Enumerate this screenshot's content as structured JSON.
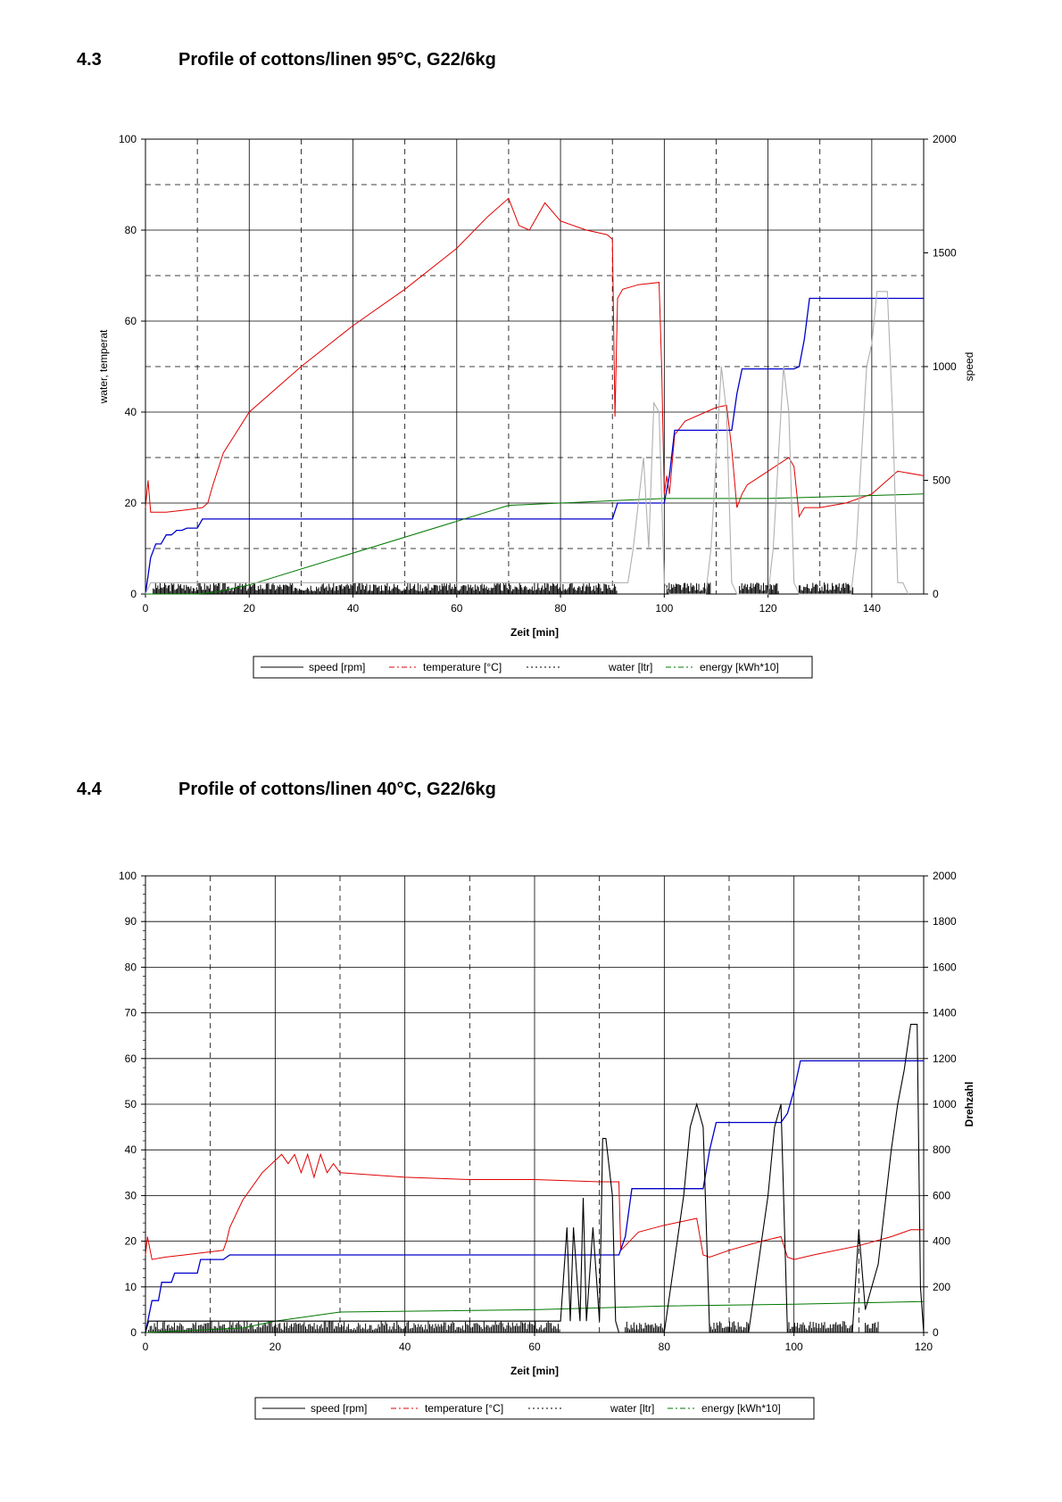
{
  "sections": [
    {
      "number": "4.3",
      "title": "Profile of cottons/linen 95°C, G22/6kg"
    },
    {
      "number": "4.4",
      "title": "Profile of cottons/linen 40°C, G22/6kg"
    }
  ],
  "chart_data": [
    {
      "type": "line",
      "title": "",
      "xlabel": "Zeit [min]",
      "ylabel": "water, temperat",
      "y2label": "speed",
      "xlim": [
        0,
        150
      ],
      "ylim": [
        0,
        100
      ],
      "y2lim": [
        0,
        2000
      ],
      "xticks": [
        0,
        20,
        40,
        60,
        80,
        100,
        120,
        140
      ],
      "yticks": [
        0,
        20,
        40,
        60,
        80,
        100
      ],
      "y2ticks": [
        0,
        500,
        1000,
        1500,
        2000
      ],
      "grid": true,
      "legend_position": "bottom",
      "legend": [
        "speed [rpm]",
        "temperature [°C]",
        "water [ltr]",
        "energy [kWh*10]"
      ],
      "colors": {
        "speed": "#000000",
        "speed_spin": "#b0b0b0",
        "temperature": "#e00000",
        "water": "#0000cc",
        "energy": "#007700"
      },
      "series": [
        {
          "name": "temperature [°C]",
          "axis": "left",
          "x": [
            0,
            0.5,
            1,
            4,
            8,
            11,
            12,
            13,
            15,
            20,
            30,
            40,
            50,
            60,
            66,
            70,
            72,
            74,
            77,
            80,
            85,
            89,
            90,
            90.5,
            91,
            92,
            95,
            99,
            99.5,
            100,
            100.5,
            101,
            102,
            104,
            108,
            110,
            112,
            113,
            114,
            115,
            116,
            120,
            124,
            125,
            126,
            127,
            130,
            135,
            140,
            145,
            150
          ],
          "y": [
            19,
            25,
            18,
            18,
            18.5,
            19,
            20,
            24,
            31,
            40,
            50,
            59,
            67,
            76,
            83,
            87,
            81,
            80,
            86,
            82,
            80,
            79,
            78,
            39,
            65,
            67,
            68,
            68.5,
            50,
            22,
            26,
            22,
            35,
            38,
            40,
            41,
            41.5,
            32,
            19,
            22,
            24,
            27,
            30,
            28,
            17,
            19,
            19,
            20,
            22,
            27,
            26
          ]
        },
        {
          "name": "water [ltr]",
          "axis": "left",
          "x": [
            0,
            1,
            2,
            3,
            4,
            5,
            6,
            7,
            8,
            10,
            11,
            12,
            90,
            91,
            99,
            100,
            101,
            102,
            112,
            113,
            114,
            115,
            125,
            126,
            127,
            128,
            150
          ],
          "y": [
            0,
            8,
            11,
            11,
            13,
            13,
            14,
            14,
            14.5,
            14.5,
            16.5,
            16.5,
            16.5,
            20,
            20,
            20,
            26,
            36,
            36,
            36,
            44,
            49.5,
            49.5,
            50,
            56,
            65,
            65
          ]
        },
        {
          "name": "energy [kWh*10]",
          "axis": "left",
          "x": [
            0,
            10,
            14,
            20,
            70,
            90,
            100,
            120,
            150
          ],
          "y": [
            0,
            0,
            0.5,
            2,
            19.5,
            20.5,
            21,
            21,
            22
          ]
        },
        {
          "name": "speed [rpm]",
          "axis": "right",
          "x": [
            0,
            1,
            93,
            94,
            96,
            97,
            98,
            99,
            100,
            101,
            108,
            109,
            110,
            111,
            112,
            113,
            114,
            120,
            121,
            122,
            123,
            124,
            125,
            126,
            136,
            137,
            138,
            139,
            140,
            141,
            142,
            143,
            144,
            145,
            146,
            147
          ],
          "y": [
            0,
            50,
            50,
            200,
            600,
            200,
            840,
            800,
            50,
            0,
            0,
            200,
            600,
            1000,
            800,
            50,
            0,
            0,
            200,
            600,
            1000,
            800,
            50,
            0,
            0,
            200,
            600,
            1000,
            1100,
            1330,
            1330,
            1330,
            800,
            50,
            50,
            0
          ]
        }
      ]
    },
    {
      "type": "line",
      "title": "",
      "xlabel": "Zeit [min]",
      "ylabel": "",
      "y2label": "Drehzahl",
      "xlim": [
        0,
        120
      ],
      "ylim": [
        0,
        100
      ],
      "y2lim": [
        0,
        2000
      ],
      "xticks": [
        0,
        20,
        40,
        60,
        80,
        100,
        120
      ],
      "yticks": [
        0,
        10,
        20,
        30,
        40,
        50,
        60,
        70,
        80,
        90,
        100
      ],
      "y2ticks": [
        0,
        200,
        400,
        600,
        800,
        1000,
        1200,
        1400,
        1600,
        1800,
        2000
      ],
      "grid": true,
      "legend_position": "bottom",
      "legend": [
        "speed [rpm]",
        "temperature [°C]",
        "water [ltr]",
        "energy [kWh*10]"
      ],
      "colors": {
        "speed": "#000000",
        "temperature": "#e00000",
        "water": "#0000cc",
        "energy": "#007700"
      },
      "series": [
        {
          "name": "temperature [°C]",
          "axis": "left",
          "x": [
            0,
            0.3,
            1,
            3,
            6,
            9,
            12,
            12.5,
            13,
            15,
            18,
            21,
            22,
            23,
            24,
            25,
            26,
            27,
            28,
            29,
            30,
            40,
            50,
            60,
            70,
            73,
            73.3,
            74,
            76,
            80,
            85,
            86,
            87,
            90,
            95,
            98,
            99,
            100,
            103,
            110,
            115,
            118,
            120
          ],
          "y": [
            17,
            21,
            16,
            16.5,
            17,
            17.5,
            18,
            20,
            23,
            29,
            35,
            39,
            37,
            39,
            35,
            39,
            34,
            39,
            35,
            37,
            35,
            34,
            33.5,
            33.5,
            33,
            33,
            18,
            19,
            22,
            23.5,
            25,
            17,
            16.5,
            18,
            20,
            21,
            16.5,
            16,
            17,
            19,
            21,
            22.5,
            22.5
          ]
        },
        {
          "name": "water [ltr]",
          "axis": "left",
          "x": [
            0,
            1,
            2,
            2.5,
            4,
            4.5,
            8,
            8.5,
            12,
            13,
            73,
            74,
            75,
            86,
            87,
            88,
            98,
            99,
            100,
            101,
            120
          ],
          "y": [
            0,
            7,
            7,
            11,
            11,
            13,
            13,
            16,
            16,
            17,
            17,
            21,
            31.5,
            31.5,
            40,
            46,
            46,
            48,
            53,
            59.5,
            59.5
          ]
        },
        {
          "name": "energy [kWh*10]",
          "axis": "left",
          "x": [
            0,
            15,
            20,
            30,
            60,
            80,
            100,
            120
          ],
          "y": [
            0,
            1,
            2.5,
            4.5,
            5,
            5.8,
            6.2,
            6.8
          ]
        },
        {
          "name": "speed [rpm]",
          "axis": "right",
          "x": [
            0,
            0.5,
            64,
            65,
            65.5,
            66,
            67,
            67.5,
            68,
            69,
            70,
            70.5,
            71,
            72,
            72.5,
            73,
            80,
            81,
            83,
            84,
            85,
            86,
            87,
            93,
            94,
            96,
            97,
            98,
            99,
            109,
            110,
            111,
            113,
            115,
            116,
            117,
            118,
            119,
            119.5,
            120
          ],
          "y": [
            0,
            50,
            50,
            460,
            50,
            460,
            50,
            590,
            50,
            460,
            50,
            850,
            850,
            600,
            50,
            0,
            0,
            200,
            600,
            900,
            1000,
            900,
            0,
            0,
            200,
            600,
            900,
            1000,
            0,
            0,
            450,
            100,
            300,
            800,
            1000,
            1150,
            1350,
            1350,
            200,
            0
          ]
        }
      ]
    }
  ]
}
